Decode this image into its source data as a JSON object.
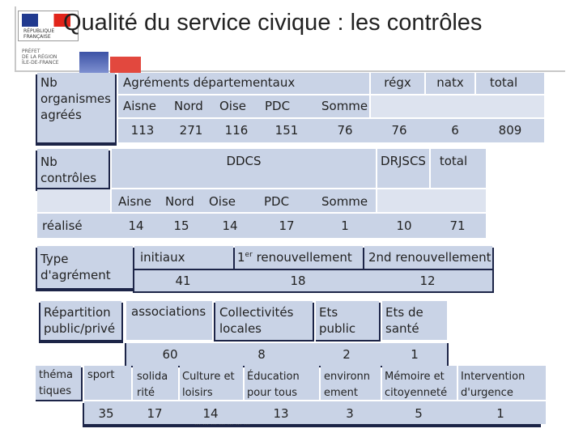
{
  "title": "Qualité du service civique : les contrôles",
  "logo": {
    "line1": "RÉPUBLIQUE FRANÇAISE",
    "prefet_lines": [
      "PRÉFET",
      "DE LA RÉGION",
      "ÎLE-DE-FRANCE"
    ]
  },
  "colors": {
    "cell": "#c9d3e6",
    "shadow": "#1c2447",
    "text": "#222222",
    "flag_blue": "#213a8f",
    "flag_red": "#e1251b"
  },
  "agrements": {
    "row_label": "Nb organismes agréés",
    "group_header": "Agréments départementaux",
    "col_regx": "régx",
    "col_natx": "natx",
    "col_total": "total",
    "depts": [
      "Aisne",
      "Nord",
      "Oise",
      "PDC",
      "Somme"
    ],
    "values": [
      "113",
      "271",
      "116",
      "151",
      "76",
      "76",
      "6",
      "809"
    ]
  },
  "controles": {
    "row_label": "Nb contrôles",
    "group_ddcs": "DDCS",
    "group_drjscs": "DRJSCS",
    "col_total": "total",
    "depts": [
      "Aisne",
      "Nord",
      "Oise",
      "PDC",
      "Somme"
    ],
    "row2_label": "réalisé",
    "values": [
      "14",
      "15",
      "14",
      "17",
      "1",
      "10",
      "71"
    ]
  },
  "type_agrement": {
    "row_label": "Type d'agrément",
    "col_initiaux": "initiaux",
    "col_1er_sup": "er",
    "col_1er_prefix": "1",
    "col_1er_text": " renouvellement",
    "col_2nd": "2nd renouvellement",
    "values": [
      "41",
      "18",
      "12"
    ]
  },
  "repartition": {
    "row_label": "Répartition public/privé",
    "cols": [
      "associations",
      "Collectivités locales",
      "Ets public",
      "Ets de santé"
    ],
    "values": [
      "60",
      "8",
      "2",
      "1"
    ]
  },
  "thematiques": {
    "row_label": "théma tiques",
    "cols": [
      "sport",
      "solida rité",
      "Culture et loisirs",
      "Éducation pour tous",
      "environn ement",
      "Mémoire et citoyenneté",
      "Intervention d'urgence"
    ],
    "values": [
      "35",
      "17",
      "14",
      "13",
      "3",
      "5",
      "1"
    ]
  },
  "footer": "... ... ... ... ... ... ..."
}
